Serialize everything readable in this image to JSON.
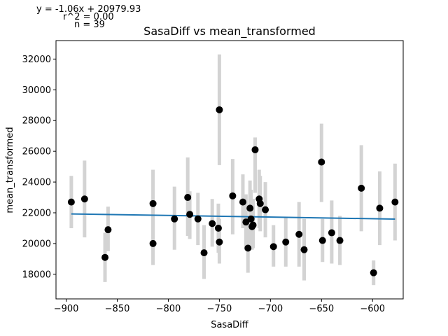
{
  "chart_data": {
    "type": "scatter",
    "title": "SasaDiff vs mean_transformed",
    "xlabel": "SasaDiff",
    "ylabel": "mean_transformed",
    "xlim": [
      -910,
      -570
    ],
    "ylim": [
      16400,
      33200
    ],
    "x_ticks": [
      -900,
      -850,
      -800,
      -750,
      -700,
      -650,
      -600
    ],
    "y_ticks": [
      18000,
      20000,
      22000,
      24000,
      26000,
      28000,
      30000,
      32000
    ],
    "grid": false,
    "annotations": [
      "y = -1.06x + 20979.93",
      "r^2 = 0.00",
      "n = 39"
    ],
    "point_color": "#000000",
    "errorbar_color": "#d3d3d3",
    "fit_color": "#1f77b4",
    "fit": {
      "slope": -1.06,
      "intercept": 20979.93,
      "x_range": [
        -895,
        -578
      ]
    },
    "points": [
      {
        "x": -895,
        "y": 22700,
        "lo": 21000,
        "hi": 24400
      },
      {
        "x": -882,
        "y": 22900,
        "lo": 20400,
        "hi": 25400
      },
      {
        "x": -862,
        "y": 19100,
        "lo": 17500,
        "hi": 20700
      },
      {
        "x": -859,
        "y": 20900,
        "lo": 19500,
        "hi": 22400
      },
      {
        "x": -815,
        "y": 20000,
        "lo": 18600,
        "hi": 21600
      },
      {
        "x": -815,
        "y": 22600,
        "lo": 20300,
        "hi": 24800
      },
      {
        "x": -794,
        "y": 21600,
        "lo": 19600,
        "hi": 23700
      },
      {
        "x": -781,
        "y": 23000,
        "lo": 20500,
        "hi": 25600
      },
      {
        "x": -779,
        "y": 21900,
        "lo": 20300,
        "hi": 23400
      },
      {
        "x": -771,
        "y": 21600,
        "lo": 19900,
        "hi": 23300
      },
      {
        "x": -765,
        "y": 19400,
        "lo": 17700,
        "hi": 21200
      },
      {
        "x": -757,
        "y": 21300,
        "lo": 19800,
        "hi": 22900
      },
      {
        "x": -751,
        "y": 21000,
        "lo": 19400,
        "hi": 22600
      },
      {
        "x": -750,
        "y": 28700,
        "lo": 25100,
        "hi": 32300
      },
      {
        "x": -750,
        "y": 20100,
        "lo": 18700,
        "hi": 21600
      },
      {
        "x": -737,
        "y": 23100,
        "lo": 20600,
        "hi": 25500
      },
      {
        "x": -727,
        "y": 22700,
        "lo": 21000,
        "hi": 24500
      },
      {
        "x": -724,
        "y": 21400,
        "lo": 19700,
        "hi": 23200
      },
      {
        "x": -722,
        "y": 19700,
        "lo": 18100,
        "hi": 21400
      },
      {
        "x": -720,
        "y": 22300,
        "lo": 20600,
        "hi": 24100
      },
      {
        "x": -719,
        "y": 21600,
        "lo": 19800,
        "hi": 23500
      },
      {
        "x": -718,
        "y": 21100,
        "lo": 19600,
        "hi": 22700
      },
      {
        "x": -717,
        "y": 21200,
        "lo": 19700,
        "hi": 22900
      },
      {
        "x": -715,
        "y": 26100,
        "lo": 23300,
        "hi": 26900
      },
      {
        "x": -711,
        "y": 22900,
        "lo": 21000,
        "hi": 24800
      },
      {
        "x": -710,
        "y": 22600,
        "lo": 20800,
        "hi": 24400
      },
      {
        "x": -705,
        "y": 22200,
        "lo": 20400,
        "hi": 24000
      },
      {
        "x": -697,
        "y": 19800,
        "lo": 18500,
        "hi": 21200
      },
      {
        "x": -685,
        "y": 20100,
        "lo": 18500,
        "hi": 21700
      },
      {
        "x": -672,
        "y": 20600,
        "lo": 18500,
        "hi": 22700
      },
      {
        "x": -667,
        "y": 19600,
        "lo": 17600,
        "hi": 21600
      },
      {
        "x": -650,
        "y": 25300,
        "lo": 22700,
        "hi": 27800
      },
      {
        "x": -649,
        "y": 20200,
        "lo": 18800,
        "hi": 21600
      },
      {
        "x": -640,
        "y": 20700,
        "lo": 18700,
        "hi": 22800
      },
      {
        "x": -632,
        "y": 20200,
        "lo": 18600,
        "hi": 21800
      },
      {
        "x": -611,
        "y": 23600,
        "lo": 20800,
        "hi": 26400
      },
      {
        "x": -599,
        "y": 18100,
        "lo": 17300,
        "hi": 18900
      },
      {
        "x": -593,
        "y": 22300,
        "lo": 19900,
        "hi": 24700
      },
      {
        "x": -578,
        "y": 22700,
        "lo": 20200,
        "hi": 25200
      }
    ]
  }
}
